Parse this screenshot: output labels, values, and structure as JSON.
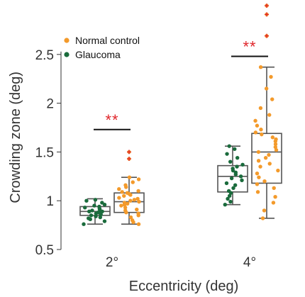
{
  "chart_data": {
    "type": "box",
    "xlabel": "Eccentricity (deg)",
    "ylabel": "Crowding zone (deg)",
    "ylim": [
      0.5,
      3.0
    ],
    "yticks": [
      0.5,
      1,
      1.5,
      2,
      2.5
    ],
    "ytick_labels": [
      "0.5",
      "1",
      "1.5",
      "2",
      "2.5"
    ],
    "categories": [
      "2°",
      "4°"
    ],
    "legend": {
      "placement": "top-left",
      "entries": [
        {
          "name": "Normal control",
          "color": "#f39a2b"
        },
        {
          "name": "Glaucoma",
          "color": "#1a6b3c"
        }
      ]
    },
    "groups": [
      {
        "category": "2°",
        "significance": "**",
        "bracket_y": 1.73,
        "boxes": [
          {
            "series": "Glaucoma",
            "color": "#1a6b3c",
            "offset": -0.25,
            "whisker_low": 0.76,
            "q1": 0.85,
            "median": 0.89,
            "q3": 0.94,
            "whisker_high": 1.02,
            "outliers": [],
            "points": [
              0.76,
              0.79,
              0.81,
              0.82,
              0.83,
              0.84,
              0.85,
              0.86,
              0.86,
              0.87,
              0.88,
              0.88,
              0.89,
              0.89,
              0.9,
              0.91,
              0.92,
              0.93,
              0.94,
              0.95,
              0.96,
              0.98,
              1.0,
              1.01
            ]
          },
          {
            "series": "Normal control",
            "color": "#f39a2b",
            "offset": 0.25,
            "whisker_low": 0.76,
            "q1": 0.88,
            "median": 0.99,
            "q3": 1.08,
            "whisker_high": 1.24,
            "outliers": [
              1.43,
              1.5
            ],
            "points": [
              0.76,
              0.78,
              0.8,
              0.83,
              0.85,
              0.87,
              0.88,
              0.9,
              0.91,
              0.93,
              0.95,
              0.96,
              0.97,
              0.98,
              0.99,
              1.0,
              1.01,
              1.02,
              1.03,
              1.05,
              1.06,
              1.07,
              1.08,
              1.09,
              1.1,
              1.12,
              1.14,
              1.16,
              1.19,
              1.22,
              1.24
            ]
          }
        ]
      },
      {
        "category": "4°",
        "significance": "**",
        "bracket_y": 2.48,
        "boxes": [
          {
            "series": "Glaucoma",
            "color": "#1a6b3c",
            "offset": -0.25,
            "whisker_low": 0.96,
            "q1": 1.09,
            "median": 1.25,
            "q3": 1.36,
            "whisker_high": 1.56,
            "outliers": [],
            "points": [
              0.96,
              0.99,
              1.02,
              1.05,
              1.08,
              1.1,
              1.13,
              1.16,
              1.18,
              1.21,
              1.23,
              1.25,
              1.27,
              1.29,
              1.31,
              1.33,
              1.35,
              1.37,
              1.4,
              1.44,
              1.48,
              1.53,
              1.56
            ]
          },
          {
            "series": "Normal control",
            "color": "#f39a2b",
            "offset": 0.25,
            "whisker_low": 0.82,
            "q1": 1.18,
            "median": 1.5,
            "q3": 1.69,
            "whisker_high": 2.37,
            "outliers": [
              2.69,
              2.91,
              3.0
            ],
            "points": [
              0.82,
              0.9,
              0.98,
              1.04,
              1.09,
              1.13,
              1.17,
              1.2,
              1.24,
              1.28,
              1.31,
              1.35,
              1.38,
              1.41,
              1.44,
              1.47,
              1.5,
              1.52,
              1.55,
              1.58,
              1.61,
              1.63,
              1.65,
              1.68,
              1.7,
              1.73,
              1.77,
              1.82,
              1.88,
              1.95,
              2.04,
              2.15,
              2.27,
              2.37
            ]
          }
        ]
      }
    ]
  }
}
